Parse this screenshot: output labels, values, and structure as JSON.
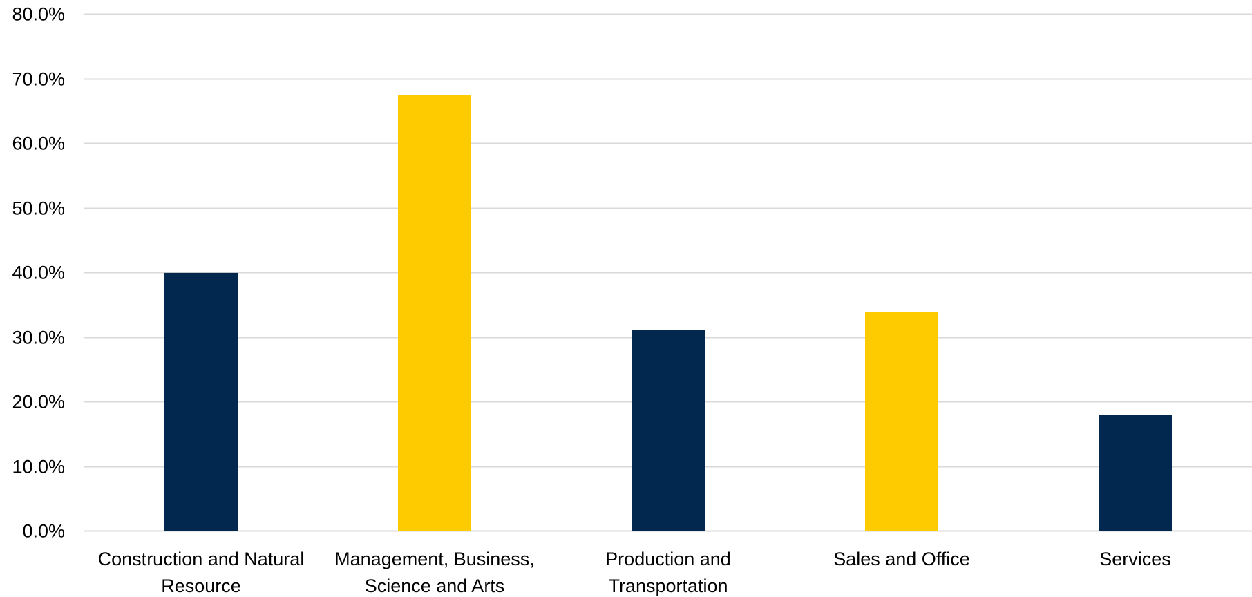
{
  "chart_data": {
    "type": "bar",
    "title": "",
    "xlabel": "",
    "ylabel": "",
    "categories": [
      [
        "Construction and Natural",
        "Resource"
      ],
      [
        "Management, Business,",
        "Science and Arts"
      ],
      [
        "Production and",
        "Transportation"
      ],
      [
        "Sales and Office"
      ],
      [
        "Services"
      ]
    ],
    "values": [
      39.9,
      67.4,
      31.1,
      33.9,
      17.9
    ],
    "bar_colors": [
      "#03284F",
      "#FECB00",
      "#03284F",
      "#FECB00",
      "#03284F"
    ],
    "ylim": [
      0,
      80
    ],
    "yticks": [
      0,
      10,
      20,
      30,
      40,
      50,
      60,
      70,
      80
    ],
    "ytick_labels": [
      "0.0%",
      "10.0%",
      "20.0%",
      "30.0%",
      "40.0%",
      "50.0%",
      "60.0%",
      "70.0%",
      "80.0%"
    ],
    "grid": true,
    "grid_color": "#D9D9D9",
    "legend": false
  }
}
